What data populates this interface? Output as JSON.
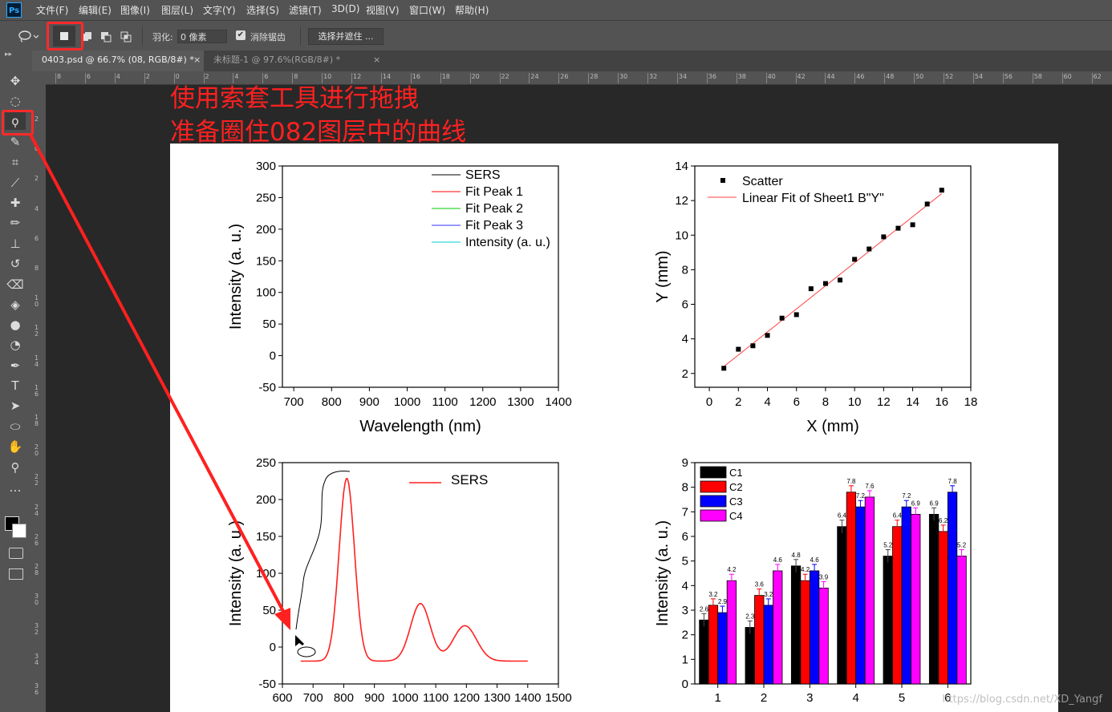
{
  "menu": {
    "logo": "Ps",
    "items": [
      "文件(F)",
      "编辑(E)",
      "图像(I)",
      "图层(L)",
      "文字(Y)",
      "选择(S)",
      "滤镜(T)",
      "3D(D)",
      "视图(V)",
      "窗口(W)",
      "帮助(H)"
    ]
  },
  "options": {
    "feather_label": "羽化:",
    "feather_value": "0 像素",
    "antialias_label": "消除锯齿",
    "antialias_checked": true,
    "select_mask_label": "选择并遮住 ..."
  },
  "tabs": [
    {
      "label": "0403.psd @ 66.7% (08, RGB/8#) *",
      "active": true
    },
    {
      "label": "未标题-1 @ 97.6%(RGB/8#) *",
      "active": false
    }
  ],
  "tool_icons": [
    "move-icon",
    "marquee-icon",
    "lasso-icon",
    "quick-select-icon",
    "crop-icon",
    "eyedropper-icon",
    "healing-icon",
    "brush-icon",
    "stamp-icon",
    "history-brush-icon",
    "eraser-icon",
    "paint-bucket-icon",
    "blur-icon",
    "dodge-icon",
    "pen-icon",
    "type-icon",
    "path-select-icon",
    "ellipse-icon",
    "hand-icon",
    "zoom-icon",
    "more-tools-icon"
  ],
  "ruler_top_labels": [
    "8",
    "6",
    "4",
    "2",
    "0",
    "2",
    "4",
    "6",
    "8",
    "10",
    "12",
    "14",
    "16",
    "18",
    "20",
    "22",
    "24",
    "26",
    "28",
    "30",
    "32",
    "34",
    "36",
    "38",
    "40",
    "42",
    "44",
    "46",
    "48",
    "50",
    "52",
    "54",
    "56",
    "58",
    "60",
    "62"
  ],
  "ruler_left_labels": [
    "2",
    "0",
    "2",
    "4",
    "6",
    "8",
    "10",
    "12",
    "14",
    "16",
    "18",
    "20",
    "22",
    "24",
    "26",
    "28",
    "30",
    "32",
    "34",
    "36"
  ],
  "annotation": {
    "line1": "使用索套工具进行拖拽",
    "line2": "准备圈住082图层中的曲线"
  },
  "watermark": "https://blog.csdn.net/XD_Yangf",
  "colors": {
    "annotation_red": "#ff2020",
    "panel_bg": "#535353",
    "canvas_bg": "#ffffff"
  },
  "chart_data": [
    {
      "type": "line",
      "xlabel": "Wavelength (nm)",
      "ylabel": "Intensity (a. u.)",
      "xticks": [
        "700",
        "800",
        "900",
        "1000",
        "1100",
        "1200",
        "1300",
        "1400"
      ],
      "yticks": [
        "300",
        "250",
        "200",
        "150",
        "100",
        "50",
        "0",
        "-50"
      ],
      "xlim": [
        670,
        1400
      ],
      "ylim": [
        -50,
        300
      ],
      "legend": [
        "SERS",
        "Fit Peak 1",
        "Fit Peak 2",
        "Fit Peak 3",
        "Intensity (a. u.)"
      ],
      "legend_colors": [
        "#000000",
        "#ff0000",
        "#00cc00",
        "#3333ff",
        "#00cccc"
      ],
      "series": []
    },
    {
      "type": "scatter",
      "xlabel": "X (mm)",
      "ylabel": "Y (mm)",
      "xticks": [
        "0",
        "2",
        "4",
        "6",
        "8",
        "10",
        "12",
        "14",
        "16",
        "18"
      ],
      "yticks": [
        "14",
        "12",
        "10",
        "8",
        "6",
        "4",
        "2"
      ],
      "xlim": [
        -1,
        18
      ],
      "ylim": [
        1.2,
        14
      ],
      "legend": [
        "Scatter",
        "Linear Fit of Sheet1 B\"Y\""
      ],
      "points": [
        [
          1,
          2.3
        ],
        [
          2,
          3.4
        ],
        [
          3,
          3.6
        ],
        [
          4,
          4.2
        ],
        [
          5,
          5.2
        ],
        [
          6,
          5.4
        ],
        [
          7,
          6.9
        ],
        [
          8,
          7.2
        ],
        [
          9,
          7.4
        ],
        [
          10,
          8.6
        ],
        [
          11,
          9.2
        ],
        [
          12,
          9.9
        ],
        [
          13,
          10.4
        ],
        [
          14,
          10.6
        ],
        [
          15,
          11.8
        ],
        [
          16,
          12.6
        ]
      ],
      "fit": [
        [
          1,
          2.4
        ],
        [
          16,
          12.4
        ]
      ]
    },
    {
      "type": "line",
      "xlabel": "",
      "ylabel": "Intensity (a. u.)",
      "xticks": [
        "600",
        "700",
        "800",
        "900",
        "1000",
        "1100",
        "1200",
        "1300",
        "1400",
        "1500"
      ],
      "yticks": [
        "250",
        "200",
        "150",
        "100",
        "50",
        "0",
        "-50"
      ],
      "xlim": [
        600,
        1500
      ],
      "ylim": [
        -50,
        250
      ],
      "legend": [
        "SERS"
      ],
      "peaks": [
        {
          "center": 810,
          "height": 248,
          "width": 25
        },
        {
          "center": 1050,
          "height": 78,
          "width": 32
        },
        {
          "center": 1195,
          "height": 48,
          "width": 38
        }
      ],
      "baseline": -19,
      "x_range": [
        660,
        1400
      ]
    },
    {
      "type": "bar",
      "xlabel": "",
      "ylabel": "Intensity (a. u.)",
      "categories": [
        "1",
        "2",
        "3",
        "4",
        "5",
        "6"
      ],
      "yticks": [
        "9",
        "8",
        "7",
        "6",
        "5",
        "4",
        "3",
        "2",
        "1",
        "0"
      ],
      "ylim": [
        0,
        9
      ],
      "series": [
        {
          "name": "C1",
          "color": "#000000",
          "values": [
            2.6,
            2.3,
            4.8,
            6.4,
            5.2,
            6.9
          ]
        },
        {
          "name": "C2",
          "color": "#ff0000",
          "values": [
            3.2,
            3.6,
            4.2,
            7.8,
            6.4,
            6.2
          ]
        },
        {
          "name": "C3",
          "color": "#0000ff",
          "values": [
            2.9,
            3.2,
            4.6,
            7.2,
            7.2,
            7.8
          ]
        },
        {
          "name": "C4",
          "color": "#ff00ff",
          "values": [
            4.2,
            4.6,
            3.9,
            7.6,
            6.9,
            5.2
          ]
        }
      ],
      "labels": [
        [
          "2.6",
          "2.3",
          "4.8",
          "6.4",
          "5.2",
          "6.9"
        ],
        [
          "3.2",
          "3.6",
          "4.2",
          "7.8",
          "6.4",
          "6.2"
        ],
        [
          "2.9",
          "3.2",
          "4.6",
          "7.2",
          "7.2",
          "7.8"
        ],
        [
          "4.2",
          "4.6",
          "3.9",
          "7.6",
          "6.9",
          "5.2"
        ]
      ]
    }
  ]
}
